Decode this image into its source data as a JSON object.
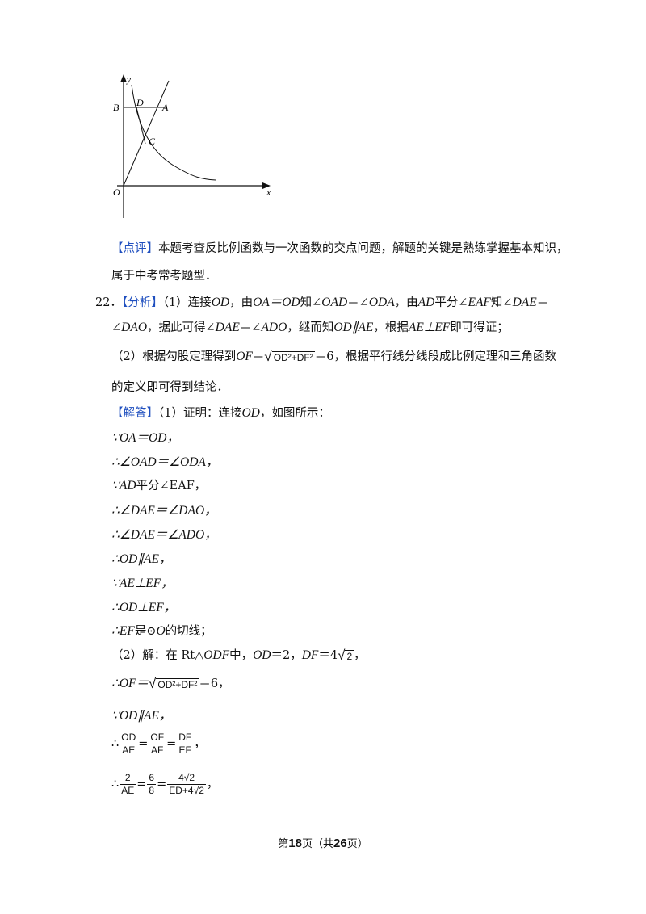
{
  "figure": {
    "labels": {
      "y": "y",
      "x": "x",
      "B": "B",
      "D": "D",
      "A": "A",
      "C": "C",
      "O": "O"
    }
  },
  "comment": {
    "tag": "【点评】",
    "line1": "本题考查反比例函数与一次函数的交点问题，解题的关键是熟练掌握基本知识，",
    "line2": "属于中考常考题型．"
  },
  "q22": {
    "number": "22．",
    "analysis_tag": "【分析】",
    "a1": "（1）连接",
    "a1_od": "OD",
    "a1_b": "，由",
    "a1_eq": "OA＝OD",
    "a1_c": "知∠",
    "a1_oad": "OAD",
    "a1_d": "＝∠",
    "a1_oda": "ODA",
    "a1_e": "，由",
    "a1_ad": "AD",
    "a1_f": "平分∠",
    "a1_eaf": "EAF",
    "a1_g": "知∠",
    "a1_dae": "DAE",
    "a1_h": "＝",
    "a2_a": "∠",
    "a2_dao": "DAO",
    "a2_b": "，据此可得∠",
    "a2_dae": "DAE",
    "a2_c": "＝∠",
    "a2_ado": "ADO",
    "a2_d": "，继而知",
    "a2_od": "OD∥AE",
    "a2_e": "，根据",
    "a2_aeef": "AE⊥EF",
    "a2_f": "即可得证；",
    "a3_a": "（2）根据勾股定理得到",
    "a3_of": "OF",
    "a3_eq": "＝",
    "a3_rad": "OD²+DF²",
    "a3_b": "＝6，根据平行线分线段成比例定理和三角函数",
    "a4": "的定义即可得到结论．",
    "answer_tag": "【解答】",
    "s0_a": "（1）证明：连接",
    "s0_od": "OD",
    "s0_b": "，如图所示：",
    "s1": "∵OA＝OD，",
    "s2": "∴∠OAD＝∠ODA，",
    "s3_a": "∵AD",
    "s3_b": "平分∠EAF，",
    "s4": "∴∠DAE＝∠DAO，",
    "s5": "∴∠DAE＝∠ADO，",
    "s6": "∴OD∥AE，",
    "s7": "∵AE⊥EF，",
    "s8": "∴OD⊥EF，",
    "s9_a": "∴EF",
    "s9_b": "是⊙",
    "s9_c": "O",
    "s9_d": "的切线；",
    "s10_a": "（2）解：在 Rt△",
    "s10_odf": "ODF",
    "s10_b": "中，",
    "s10_c": "OD",
    "s10_d": "＝2，",
    "s10_e": "DF",
    "s10_f": "＝4",
    "s10_g": "2",
    "s10_h": "，",
    "s11_a": "∴OF＝",
    "s11_rad": "OD²+DF²",
    "s11_b": "＝6，",
    "s12": "∵OD∥AE，",
    "s13_a": "∴",
    "f1n": "OD",
    "f1d": "AE",
    "f2n": "OF",
    "f2d": "AF",
    "f3n": "DF",
    "f3d": "EF",
    "s13_b": "，",
    "s14_a": "∴",
    "g1n": "2",
    "g1d": "AE",
    "g2n": "6",
    "g2d": "8",
    "g3n": "4√2",
    "g3d": "ED+4√2",
    "s14_b": "，"
  },
  "footer": {
    "a": "第",
    "page": "18",
    "b": "页（共",
    "total": "26",
    "c": "页）"
  }
}
